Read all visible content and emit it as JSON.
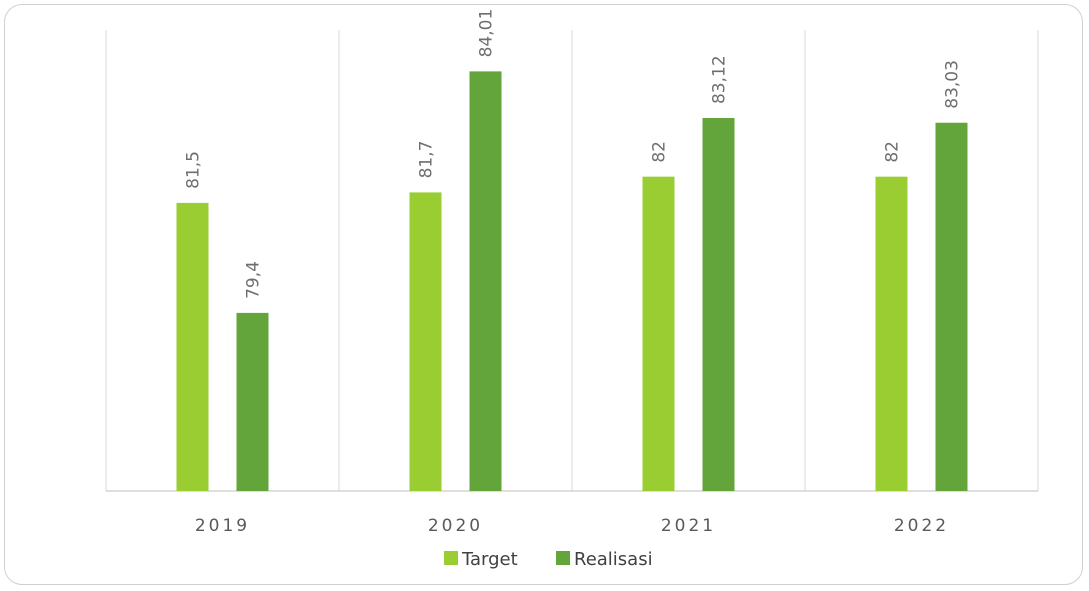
{
  "chart_data": {
    "type": "bar",
    "categories": [
      "2019",
      "2020",
      "2021",
      "2022"
    ],
    "series": [
      {
        "name": "Target",
        "values": [
          81.5,
          81.7,
          82,
          82
        ],
        "labels": [
          "81,5",
          "81,7",
          "82",
          "82"
        ],
        "color": "#9acd32"
      },
      {
        "name": "Realisasi",
        "values": [
          79.4,
          84.01,
          83.12,
          83.03
        ],
        "labels": [
          "79,4",
          "84,01",
          "83,12",
          "83,03"
        ],
        "color": "#63a53a"
      }
    ],
    "title": "",
    "xlabel": "",
    "ylabel": "",
    "ylim": [
      76,
      84.8
    ],
    "grid": "vertical category separators",
    "legend_position": "bottom"
  }
}
